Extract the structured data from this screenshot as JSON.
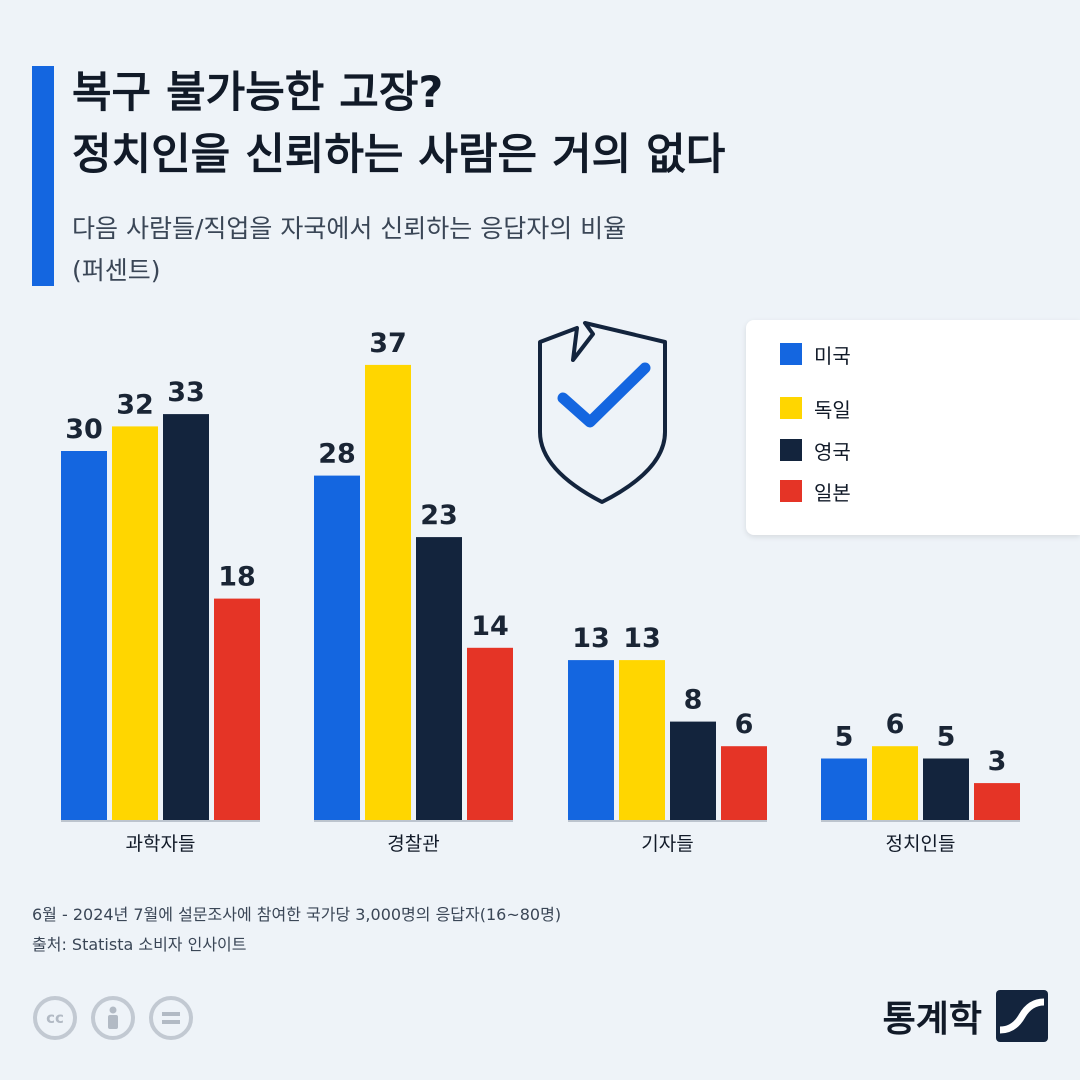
{
  "header": {
    "title_line1": "복구 불가능한 고장?",
    "title_line2": "정치인을 신뢰하는 사람은 거의 없다",
    "subtitle_line1": "다음 사람들/직업을 자국에서 신뢰하는 응답자의 비율",
    "subtitle_line2": "(퍼센트)"
  },
  "legend": {
    "placement": "top-right",
    "items": [
      {
        "label": "미국",
        "color": "#1466e0"
      },
      {
        "label": "독일",
        "color": "#ffd600"
      },
      {
        "label": "영국",
        "color": "#13243d"
      },
      {
        "label": "일본",
        "color": "#e53426"
      }
    ]
  },
  "chart_data": {
    "type": "bar",
    "title": "복구 불가능한 고장? 정치인을 신뢰하는 사람은 거의 없다",
    "subtitle": "다음 사람들/직업을 자국에서 신뢰하는 응답자의 비율 (퍼센트)",
    "categories": [
      "과학자들",
      "경찰관",
      "기자들",
      "정치인들"
    ],
    "series": [
      {
        "name": "미국",
        "color": "#1466e0",
        "values": [
          30,
          28,
          13,
          5
        ]
      },
      {
        "name": "독일",
        "color": "#ffd600",
        "values": [
          32,
          37,
          13,
          6
        ]
      },
      {
        "name": "영국",
        "color": "#13243d",
        "values": [
          33,
          23,
          8,
          5
        ]
      },
      {
        "name": "일본",
        "color": "#e53426",
        "values": [
          18,
          14,
          6,
          3
        ]
      }
    ],
    "xlabel": "",
    "ylabel": "",
    "ylim": [
      0,
      40
    ],
    "grid": false,
    "legend": "top-right"
  },
  "footer": {
    "note": "6월 - 2024년 7월에 설문조사에 참여한 국가당 3,000명의 응답자(16~80명)",
    "source": "출처: Statista 소비자 인사이트",
    "cc_icons": [
      "cc-icon",
      "attribution-icon",
      "no-derivatives-icon"
    ],
    "cc_text": "cc",
    "brand": "통계학"
  },
  "icons": {
    "shield": "broken-shield-check-icon"
  }
}
